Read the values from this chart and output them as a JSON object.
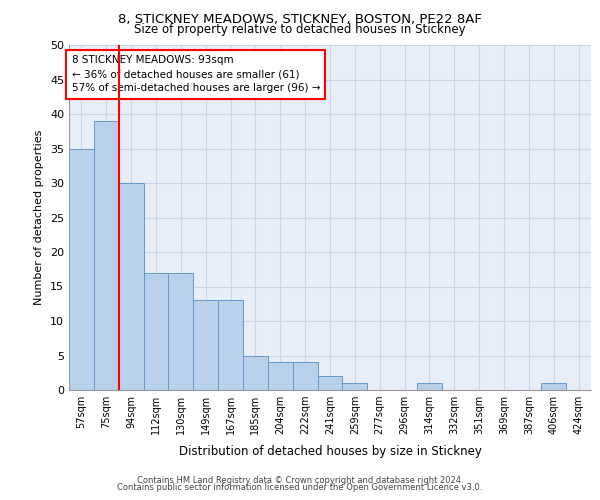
{
  "title1": "8, STICKNEY MEADOWS, STICKNEY, BOSTON, PE22 8AF",
  "title2": "Size of property relative to detached houses in Stickney",
  "xlabel": "Distribution of detached houses by size in Stickney",
  "ylabel": "Number of detached properties",
  "bar_labels": [
    "57sqm",
    "75sqm",
    "94sqm",
    "112sqm",
    "130sqm",
    "149sqm",
    "167sqm",
    "185sqm",
    "204sqm",
    "222sqm",
    "241sqm",
    "259sqm",
    "277sqm",
    "296sqm",
    "314sqm",
    "332sqm",
    "351sqm",
    "369sqm",
    "387sqm",
    "406sqm",
    "424sqm"
  ],
  "bar_values": [
    35,
    39,
    30,
    17,
    17,
    13,
    13,
    5,
    4,
    4,
    2,
    1,
    0,
    0,
    1,
    0,
    0,
    0,
    0,
    1,
    0
  ],
  "bar_color": "#b8d0ea",
  "bar_edgecolor": "#6699cc",
  "ylim": [
    0,
    50
  ],
  "yticks": [
    0,
    5,
    10,
    15,
    20,
    25,
    30,
    35,
    40,
    45,
    50
  ],
  "property_label": "8 STICKNEY MEADOWS: 93sqm",
  "annotation_line1": "← 36% of detached houses are smaller (61)",
  "annotation_line2": "57% of semi-detached houses are larger (96) →",
  "vline_bar_index": 2,
  "footer1": "Contains HM Land Registry data © Crown copyright and database right 2024.",
  "footer2": "Contains public sector information licensed under the Open Government Licence v3.0.",
  "background_color": "#e8eef8",
  "grid_color": "#c8d4e8"
}
